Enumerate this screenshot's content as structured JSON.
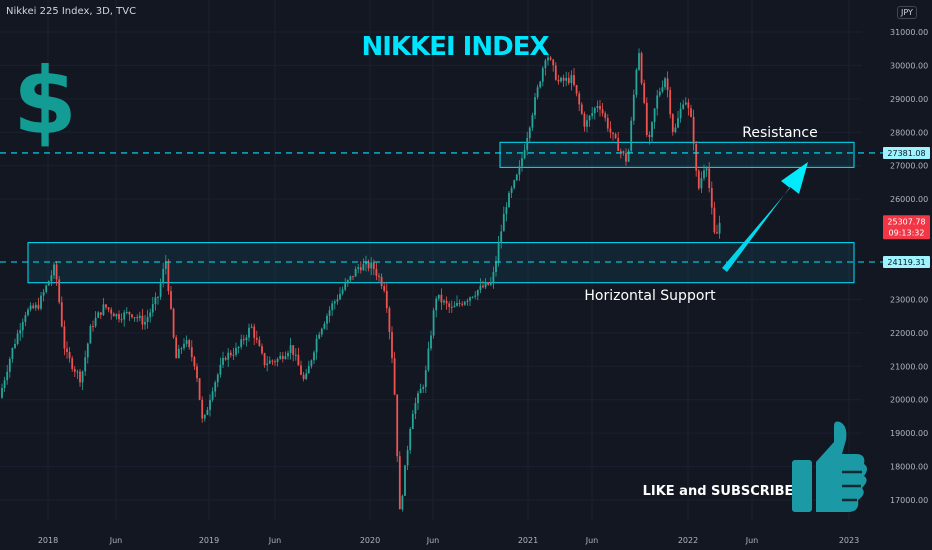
{
  "header": {
    "symbol": "Nikkei 225 Index, 3D, TVC",
    "currency": "JPY"
  },
  "overlay": {
    "title": "NIKKEI INDEX",
    "resistance_label": "Resistance",
    "support_label": "Horizontal Support",
    "cta": "LIKE and SUBSCRIBE",
    "accent": "#00e5ff",
    "dollar_color": "#129c94",
    "thumb_color": "#1b9aa6"
  },
  "price_tags": {
    "resistance": "27381.08",
    "current": "25307.78",
    "countdown": "09:13:32",
    "support": "24119.31"
  },
  "chart_data": {
    "type": "candlestick",
    "title": "NIKKEI INDEX",
    "y_ticks": [
      "31000.00",
      "30000.00",
      "29000.00",
      "28000.00",
      "27000.00",
      "26000.00",
      "23000.00",
      "22000.00",
      "21000.00",
      "20000.00",
      "19000.00",
      "18000.00",
      "17000.00"
    ],
    "x_ticks": [
      "2018",
      "Jun",
      "2019",
      "Jun",
      "2020",
      "Jun",
      "2021",
      "Jun",
      "2022",
      "Jun",
      "2023"
    ],
    "ylim": [
      16300,
      31500
    ],
    "x_range": [
      "2017-09",
      "2023-02"
    ],
    "resistance_level": 27381.08,
    "support_level": 24119.31,
    "current_price": 25307.78,
    "resistance_zone": [
      26950,
      27700
    ],
    "support_zone": [
      23500,
      24700
    ],
    "up_color": "#26a69a",
    "down_color": "#ef5350",
    "series": [
      {
        "values": [
          [
            "2017-09-15",
            19900
          ],
          [
            "2017-10-15",
            21400
          ],
          [
            "2017-11-15",
            22600
          ],
          [
            "2017-12-15",
            22800
          ],
          [
            "2018-01-23",
            24000
          ],
          [
            "2018-02-15",
            21400
          ],
          [
            "2018-03-23",
            20600
          ],
          [
            "2018-04-15",
            22200
          ],
          [
            "2018-05-15",
            22800
          ],
          [
            "2018-06-15",
            22500
          ],
          [
            "2018-07-15",
            22600
          ],
          [
            "2018-08-15",
            22300
          ],
          [
            "2018-09-15",
            23100
          ],
          [
            "2018-10-02",
            24200
          ],
          [
            "2018-10-25",
            21200
          ],
          [
            "2018-11-15",
            21800
          ],
          [
            "2018-12-10",
            21000
          ],
          [
            "2018-12-26",
            19200
          ],
          [
            "2019-01-15",
            20300
          ],
          [
            "2019-02-15",
            21300
          ],
          [
            "2019-03-15",
            21500
          ],
          [
            "2019-04-15",
            22200
          ],
          [
            "2019-05-15",
            21100
          ],
          [
            "2019-06-15",
            21200
          ],
          [
            "2019-07-15",
            21600
          ],
          [
            "2019-08-15",
            20500
          ],
          [
            "2019-09-15",
            22000
          ],
          [
            "2019-10-15",
            22800
          ],
          [
            "2019-11-15",
            23400
          ],
          [
            "2019-12-17",
            24000
          ],
          [
            "2020-01-17",
            24000
          ],
          [
            "2020-02-15",
            23300
          ],
          [
            "2020-03-05",
            20800
          ],
          [
            "2020-03-19",
            16600
          ],
          [
            "2020-04-15",
            19600
          ],
          [
            "2020-05-15",
            20600
          ],
          [
            "2020-06-09",
            23100
          ],
          [
            "2020-07-15",
            22700
          ],
          [
            "2020-08-15",
            23000
          ],
          [
            "2020-09-15",
            23300
          ],
          [
            "2020-10-15",
            23500
          ],
          [
            "2020-11-15",
            25800
          ],
          [
            "2020-12-15",
            26800
          ],
          [
            "2021-01-15",
            28600
          ],
          [
            "2021-02-16",
            30400
          ],
          [
            "2021-03-15",
            29500
          ],
          [
            "2021-04-15",
            29600
          ],
          [
            "2021-05-15",
            28200
          ],
          [
            "2021-06-15",
            28900
          ],
          [
            "2021-07-15",
            27900
          ],
          [
            "2021-08-20",
            27100
          ],
          [
            "2021-09-14",
            30600
          ],
          [
            "2021-10-06",
            27500
          ],
          [
            "2021-10-25",
            29000
          ],
          [
            "2021-11-15",
            29700
          ],
          [
            "2021-12-03",
            27900
          ],
          [
            "2021-12-28",
            29100
          ],
          [
            "2022-01-15",
            28200
          ],
          [
            "2022-01-27",
            26200
          ],
          [
            "2022-02-15",
            27200
          ],
          [
            "2022-03-08",
            24700
          ],
          [
            "2022-03-17",
            25300
          ]
        ]
      }
    ]
  }
}
